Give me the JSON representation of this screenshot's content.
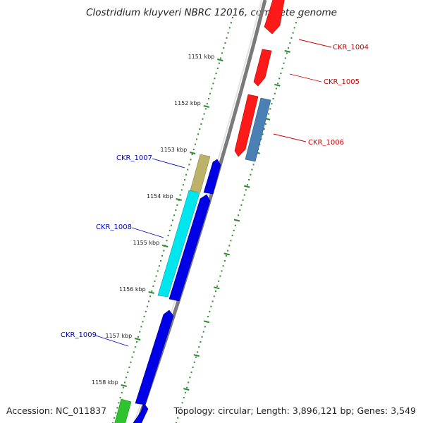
{
  "title": "Clostridium kluyveri NBRC 12016, complete genome",
  "footer": {
    "accession": "Accession: NC_011837",
    "summary": "Topology: circular; Length: 3,896,121 bp; Genes: 3,549"
  },
  "colors": {
    "backbone": "#8a8a8a",
    "tick_dots": "#2d8a2d",
    "forward_label": "#cc0000",
    "reverse_label": "#0000cc",
    "gene_red": "#ff0000",
    "gene_steelblue": "#4a80b4",
    "gene_khaki": "#bdb26a",
    "gene_blue": "#0000e6",
    "gene_cyan": "#00e6ee",
    "gene_green": "#2fc42f"
  },
  "ticks": [
    "1151 kbp",
    "1152 kbp",
    "1153 kbp",
    "1154 kbp",
    "1155 kbp",
    "1156 kbp",
    "1157 kbp",
    "1158 kbp"
  ],
  "labels": [
    {
      "text": "CKR_1004",
      "strand": "forward"
    },
    {
      "text": "CKR_1005",
      "strand": "forward"
    },
    {
      "text": "CKR_1006",
      "strand": "forward"
    },
    {
      "text": "CKR_1007",
      "strand": "reverse"
    },
    {
      "text": "CKR_1008",
      "strand": "reverse"
    },
    {
      "text": "CKR_1009",
      "strand": "reverse"
    }
  ]
}
